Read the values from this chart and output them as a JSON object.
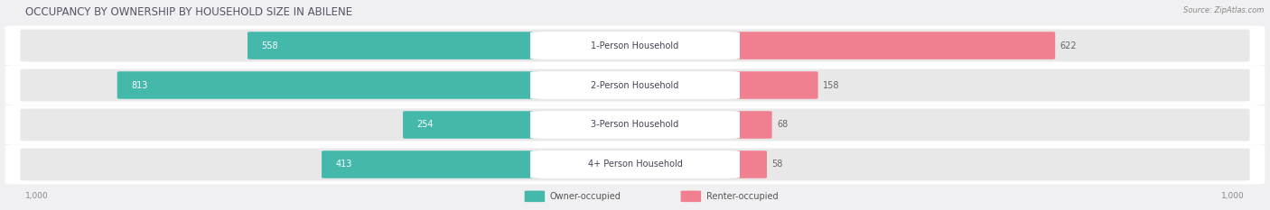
{
  "title": "OCCUPANCY BY OWNERSHIP BY HOUSEHOLD SIZE IN ABILENE",
  "source": "Source: ZipAtlas.com",
  "categories": [
    "1-Person Household",
    "2-Person Household",
    "3-Person Household",
    "4+ Person Household"
  ],
  "owner_values": [
    558,
    813,
    254,
    413
  ],
  "renter_values": [
    622,
    158,
    68,
    58
  ],
  "max_scale": 1000,
  "owner_color": "#45B8AC",
  "renter_color": "#F08090",
  "bg_color": "#F0F0F2",
  "row_bg_light": "#EBEBEB",
  "row_bg_dark": "#E0E0E0",
  "title_fontsize": 8.5,
  "label_fontsize": 7.0,
  "tick_fontsize": 6.5,
  "legend_fontsize": 7.0,
  "source_fontsize": 6.0
}
